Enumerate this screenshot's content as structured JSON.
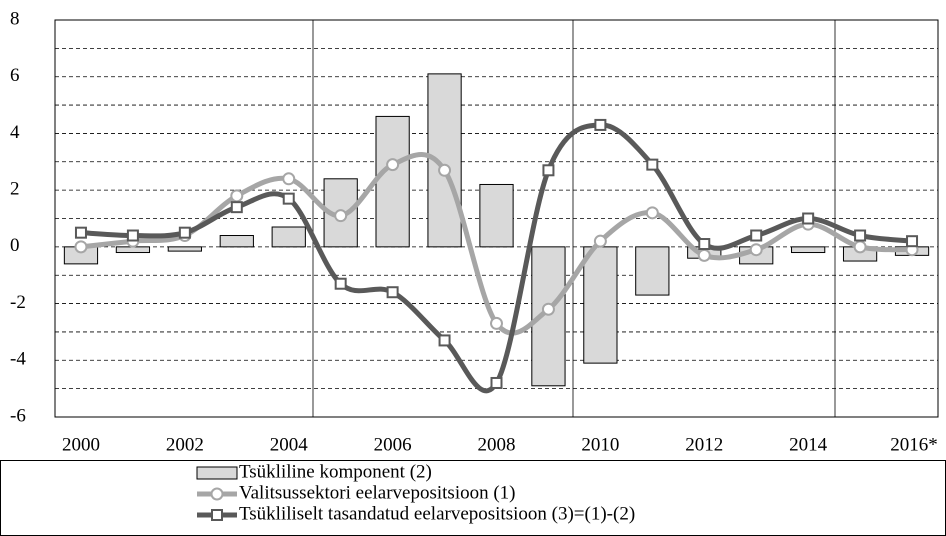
{
  "chart_data": {
    "type": "bar-line",
    "categories": [
      "2000",
      null,
      "2002",
      null,
      "2004",
      null,
      "2006",
      null,
      "2008",
      null,
      "2010",
      null,
      "2012",
      null,
      "2014",
      null,
      "2016*"
    ],
    "series": [
      {
        "name": "Tsükliline komponent (2)",
        "type": "bar",
        "color": "#d9d9d9",
        "values": [
          -0.6,
          -0.2,
          -0.15,
          0.4,
          0.7,
          2.4,
          4.6,
          6.1,
          2.2,
          -4.9,
          -4.1,
          -1.7,
          -0.4,
          -0.6,
          -0.2,
          -0.5,
          -0.3
        ]
      },
      {
        "name": "Valitsussektori eelarvepositsioon (1)",
        "type": "line",
        "marker": "circle",
        "color": "#a6a6a6",
        "values": [
          0.0,
          0.2,
          0.4,
          1.8,
          2.4,
          1.1,
          2.9,
          2.7,
          -2.7,
          -2.2,
          0.2,
          1.2,
          -0.3,
          -0.1,
          0.8,
          0.0,
          -0.1
        ]
      },
      {
        "name": "Tsükliliselt tasandatud eelarvepositsioon (3)=(1)-(2)",
        "type": "line",
        "marker": "square",
        "color": "#595959",
        "values": [
          0.5,
          0.4,
          0.5,
          1.4,
          1.7,
          -1.3,
          -1.6,
          -3.3,
          -4.8,
          2.7,
          4.3,
          2.9,
          0.1,
          0.4,
          1.0,
          0.4,
          0.2
        ]
      }
    ],
    "ylim": [
      -6,
      8
    ],
    "yticks": [
      -6,
      -4,
      -2,
      0,
      2,
      4,
      6,
      8
    ],
    "grid": true,
    "legend": "bottom"
  }
}
